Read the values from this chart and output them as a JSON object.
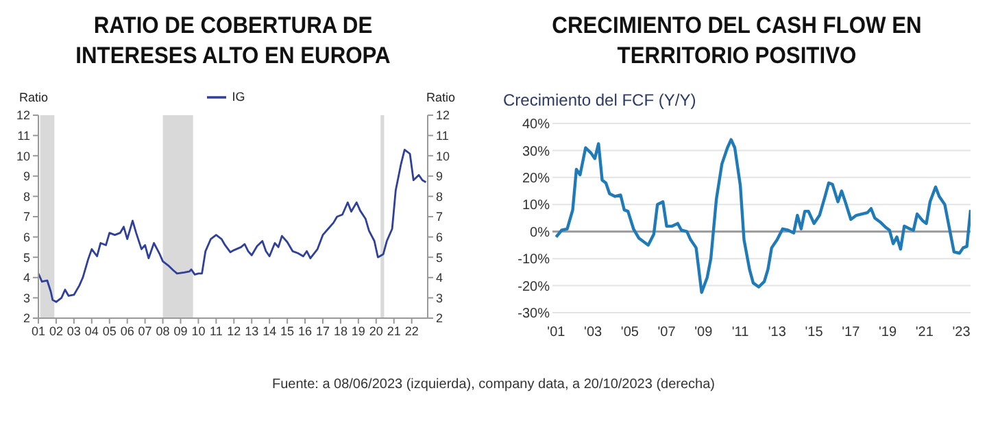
{
  "chart_data": [
    {
      "type": "line",
      "title": "RATIO DE COBERTURA DE INTERESES ALTO EN EUROPA",
      "ylabel": "Ratio",
      "y2label": "Ratio",
      "legend": "top",
      "x": [
        2001.0,
        2001.2,
        2001.5,
        2001.7,
        2001.8,
        2002.0,
        2002.3,
        2002.5,
        2002.7,
        2003.0,
        2003.3,
        2003.5,
        2003.8,
        2004.0,
        2004.3,
        2004.5,
        2004.8,
        2005.0,
        2005.3,
        2005.6,
        2005.8,
        2006.0,
        2006.3,
        2006.5,
        2006.8,
        2007.0,
        2007.2,
        2007.5,
        2007.8,
        2008.0,
        2008.3,
        2008.6,
        2008.8,
        2009.2,
        2009.5,
        2009.6,
        2009.8,
        2010.0,
        2010.2,
        2010.4,
        2010.7,
        2011.0,
        2011.3,
        2011.5,
        2011.8,
        2012.0,
        2012.4,
        2012.6,
        2012.8,
        2013.0,
        2013.3,
        2013.6,
        2013.8,
        2014.0,
        2014.3,
        2014.5,
        2014.7,
        2015.0,
        2015.3,
        2015.6,
        2015.9,
        2016.1,
        2016.3,
        2016.7,
        2017.0,
        2017.3,
        2017.6,
        2017.8,
        2018.1,
        2018.4,
        2018.6,
        2018.9,
        2019.1,
        2019.4,
        2019.6,
        2019.9,
        2020.1,
        2020.4,
        2020.6,
        2020.9,
        2021.1,
        2021.4,
        2021.6,
        2021.9,
        2022.1,
        2022.4,
        2022.6,
        2022.8
      ],
      "series": [
        {
          "name": "IG",
          "color": "#2e3f9c",
          "values": [
            4.2,
            3.8,
            3.85,
            3.3,
            2.9,
            2.8,
            3.0,
            3.4,
            3.1,
            3.15,
            3.6,
            4.0,
            4.9,
            5.4,
            5.05,
            5.7,
            5.6,
            6.2,
            6.1,
            6.2,
            6.5,
            5.9,
            6.8,
            6.2,
            5.4,
            5.6,
            4.95,
            5.7,
            5.2,
            4.8,
            4.6,
            4.35,
            4.2,
            4.25,
            4.3,
            4.4,
            4.15,
            4.2,
            4.2,
            5.3,
            5.9,
            6.1,
            5.9,
            5.6,
            5.25,
            5.35,
            5.5,
            5.65,
            5.3,
            5.1,
            5.55,
            5.8,
            5.3,
            5.05,
            5.7,
            5.5,
            6.05,
            5.75,
            5.3,
            5.2,
            5.05,
            5.3,
            4.95,
            5.4,
            6.1,
            6.4,
            6.7,
            7.0,
            7.1,
            7.7,
            7.25,
            7.7,
            7.3,
            6.9,
            6.3,
            5.8,
            5.0,
            5.15,
            5.8,
            6.4,
            8.3,
            9.6,
            10.3,
            10.1,
            8.8,
            9.05,
            8.8,
            8.7
          ]
        }
      ],
      "xlim": [
        2001,
        2022.9
      ],
      "xticks": [
        {
          "value": 2001,
          "label": "01"
        },
        {
          "value": 2002,
          "label": "02"
        },
        {
          "value": 2003,
          "label": "03"
        },
        {
          "value": 2004,
          "label": "04"
        },
        {
          "value": 2005,
          "label": "05"
        },
        {
          "value": 2006,
          "label": "06"
        },
        {
          "value": 2007,
          "label": "07"
        },
        {
          "value": 2008,
          "label": "08"
        },
        {
          "value": 2009,
          "label": "09"
        },
        {
          "value": 2010,
          "label": "10"
        },
        {
          "value": 2011,
          "label": "11"
        },
        {
          "value": 2012,
          "label": "12"
        },
        {
          "value": 2013,
          "label": "13"
        },
        {
          "value": 2014,
          "label": "14"
        },
        {
          "value": 2015,
          "label": "15"
        },
        {
          "value": 2016,
          "label": "16"
        },
        {
          "value": 2017,
          "label": "17"
        },
        {
          "value": 2018,
          "label": "18"
        },
        {
          "value": 2019,
          "label": "19"
        },
        {
          "value": 2020,
          "label": "20"
        },
        {
          "value": 2021,
          "label": "21"
        },
        {
          "value": 2022,
          "label": "22"
        }
      ],
      "ylim": [
        2,
        12
      ],
      "yticks": [
        2,
        3,
        4,
        5,
        6,
        7,
        8,
        9,
        10,
        11,
        12
      ],
      "y2lim": [
        2,
        12
      ],
      "y2ticks": [
        2,
        3,
        4,
        5,
        6,
        7,
        8,
        9,
        10,
        11,
        12
      ],
      "bands": [
        {
          "axis": "x",
          "from": 2001.1,
          "to": 2001.9,
          "color": "#d9d9d9"
        },
        {
          "axis": "x",
          "from": 2008.0,
          "to": 2009.7,
          "color": "#d9d9d9"
        },
        {
          "axis": "x",
          "from": 2020.25,
          "to": 2020.45,
          "color": "#d9d9d9"
        }
      ]
    },
    {
      "type": "line",
      "title": "CRECIMIENTO DEL CASH FLOW EN TERRITORIO POSITIVO",
      "ylabel": "Crecimiento del FCF (Y/Y)",
      "grid": "y",
      "x": [
        2001.0,
        2001.3,
        2001.6,
        2001.9,
        2002.1,
        2002.3,
        2002.6,
        2002.9,
        2003.1,
        2003.3,
        2003.5,
        2003.7,
        2003.9,
        2004.2,
        2004.5,
        2004.7,
        2004.9,
        2005.2,
        2005.5,
        2005.8,
        2006.0,
        2006.3,
        2006.5,
        2006.8,
        2007.0,
        2007.3,
        2007.6,
        2007.8,
        2008.1,
        2008.3,
        2008.6,
        2008.9,
        2009.2,
        2009.4,
        2009.7,
        2010.0,
        2010.3,
        2010.5,
        2010.7,
        2011.0,
        2011.2,
        2011.5,
        2011.7,
        2012.0,
        2012.3,
        2012.5,
        2012.7,
        2013.0,
        2013.3,
        2013.6,
        2013.9,
        2014.1,
        2014.3,
        2014.5,
        2014.7,
        2015.0,
        2015.3,
        2015.6,
        2015.8,
        2016.0,
        2016.3,
        2016.5,
        2016.7,
        2017.0,
        2017.3,
        2017.6,
        2017.9,
        2018.1,
        2018.3,
        2018.6,
        2018.9,
        2019.1,
        2019.3,
        2019.5,
        2019.7,
        2019.9,
        2020.2,
        2020.4,
        2020.6,
        2020.9,
        2021.1,
        2021.3,
        2021.6,
        2021.8,
        2022.1,
        2022.3,
        2022.6,
        2022.9,
        2023.1,
        2023.3,
        2023.5
      ],
      "series": [
        {
          "color": "#1f7ab8",
          "values": [
            -2,
            0.5,
            1,
            8,
            23,
            21,
            31,
            29,
            27,
            32.5,
            19,
            18,
            14,
            13,
            13.5,
            8,
            7.5,
            1,
            -2.5,
            -4,
            -5,
            -1,
            10,
            11,
            2,
            2,
            3,
            0.5,
            0,
            -3,
            -6,
            -22.5,
            -17,
            -10,
            12,
            25,
            31,
            34,
            31,
            17,
            -3,
            -14,
            -19,
            -20.5,
            -18.5,
            -14,
            -6,
            -3,
            1,
            0.5,
            -0.5,
            6,
            1,
            7.5,
            7.5,
            3,
            6,
            13,
            18,
            17.5,
            11,
            15,
            11,
            4.5,
            6,
            6.5,
            7,
            8.5,
            5,
            3.5,
            1.5,
            0.5,
            -4.5,
            -2,
            -6.5,
            2,
            1,
            0.5,
            6.5,
            4,
            3,
            11,
            16.5,
            13,
            10,
            3,
            -7.5,
            -8,
            -6,
            -5.5,
            8
          ]
        }
      ],
      "xlim": [
        2000.8,
        2023.5
      ],
      "xticks": [
        {
          "value": 2001,
          "label": "'01"
        },
        {
          "value": 2003,
          "label": "'03"
        },
        {
          "value": 2005,
          "label": "'05"
        },
        {
          "value": 2007,
          "label": "'07"
        },
        {
          "value": 2009,
          "label": "'09"
        },
        {
          "value": 2011,
          "label": "'11"
        },
        {
          "value": 2013,
          "label": "'13"
        },
        {
          "value": 2015,
          "label": "'15"
        },
        {
          "value": 2017,
          "label": "'17"
        },
        {
          "value": 2019,
          "label": "'19"
        },
        {
          "value": 2021,
          "label": "'21"
        },
        {
          "value": 2023,
          "label": "'23"
        }
      ],
      "ylim": [
        -30,
        40
      ],
      "yticks": [
        {
          "value": -30,
          "label": "-30%"
        },
        {
          "value": -20,
          "label": "-20%"
        },
        {
          "value": -10,
          "label": "-10%"
        },
        {
          "value": 0,
          "label": "0%"
        },
        {
          "value": 10,
          "label": "10%"
        },
        {
          "value": 20,
          "label": "20%"
        },
        {
          "value": 30,
          "label": "30%"
        },
        {
          "value": 40,
          "label": "40%"
        }
      ],
      "ref_lines": [
        {
          "axis": "y",
          "value": 0,
          "color": "#999999"
        }
      ],
      "annotations": [
        "Fuente: a 08/06/2023 (izquierda), company data, a 20/10/2023 (derecha)"
      ]
    }
  ]
}
